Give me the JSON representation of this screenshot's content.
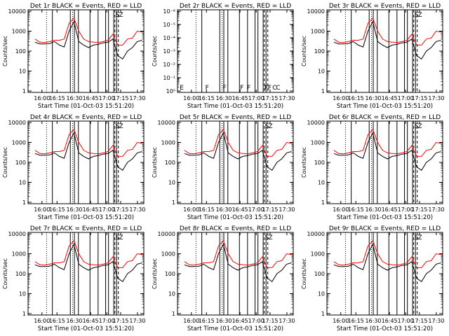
{
  "chart_data": [
    {
      "type": "line",
      "title": "Det 1r BLACK = Events, RED = LLD",
      "xlabel": "Start Time (01-Oct-03 15:51:20)",
      "ylabel": "Counts/sec",
      "x_ticks": [
        "16:00",
        "16:15",
        "16:30",
        "16:45",
        "17:00",
        "17:15",
        "17:30"
      ],
      "y_ticks": [
        "1",
        "10",
        "100",
        "1000",
        "10000"
      ],
      "yscale": "log",
      "ylim": [
        1,
        10000
      ],
      "series": [
        {
          "color": "#000000",
          "values": [
            280,
            230,
            230,
            240,
            300,
            200,
            160,
            1000,
            3000,
            300,
            200,
            150,
            200,
            220,
            260,
            280,
            400,
            60,
            40,
            100,
            150,
            300,
            350
          ]
        },
        {
          "color": "#ff0000",
          "values": [
            400,
            280,
            270,
            300,
            350,
            350,
            400,
            2500,
            4500,
            1000,
            400,
            300,
            280,
            270,
            300,
            350,
            700,
            200,
            200,
            400,
            450,
            1000,
            900
          ]
        }
      ],
      "flag_letters": [
        "S",
        "Z"
      ]
    },
    {
      "type": "line",
      "title": "Det 2r BLACK = Events, RED = LLD",
      "xlabel": "Start Time (01-Oct-03 15:51:20)",
      "ylabel": "Counts/sec",
      "x_ticks": [
        "16:00",
        "16:15",
        "16:30",
        "16:45",
        "17:00",
        "17:15",
        "17:30"
      ],
      "y_ticks": [
        "10⁰",
        "10⁻¹",
        "10⁻²",
        "10⁻³",
        "10⁻⁴",
        "10⁻⁵",
        "10⁻⁶"
      ],
      "yscale": "log",
      "series": [],
      "flag_letters": [
        "E",
        "F",
        "F",
        "F",
        "F",
        "F",
        "F",
        "C",
        "C"
      ]
    },
    {
      "type": "line",
      "title": "Det 3r BLACK = Events, RED = LLD",
      "xlabel": "Start Time (01-Oct-03 15:51:20)",
      "ylabel": "Counts/sec",
      "x_ticks": [
        "16:00",
        "16:15",
        "16:30",
        "16:45",
        "17:00",
        "17:15",
        "17:30"
      ],
      "y_ticks": [
        "1",
        "10",
        "100",
        "1000",
        "10000"
      ],
      "yscale": "log",
      "ylim": [
        1,
        10000
      ],
      "series": [
        {
          "color": "#000000",
          "values": [
            280,
            230,
            230,
            240,
            300,
            200,
            160,
            1000,
            3000,
            300,
            200,
            150,
            200,
            220,
            260,
            280,
            400,
            60,
            40,
            100,
            150,
            300,
            350
          ]
        },
        {
          "color": "#ff0000",
          "values": [
            400,
            280,
            270,
            300,
            350,
            350,
            400,
            2500,
            4500,
            1000,
            400,
            300,
            280,
            270,
            300,
            350,
            700,
            200,
            200,
            400,
            450,
            1000,
            900
          ]
        }
      ],
      "flag_letters": [
        "S",
        "Z"
      ]
    },
    {
      "type": "line",
      "title": "Det 4r BLACK = Events, RED = LLD",
      "xlabel": "Start Time (01-Oct-03 15:51:20)",
      "ylabel": "Counts/sec",
      "x_ticks": [
        "16:00",
        "16:15",
        "16:30",
        "16:45",
        "17:00",
        "17:15",
        "17:30"
      ],
      "y_ticks": [
        "1",
        "10",
        "100",
        "1000",
        "10000"
      ],
      "yscale": "log",
      "ylim": [
        1,
        10000
      ],
      "series": [
        {
          "color": "#000000",
          "values": [
            280,
            230,
            230,
            240,
            300,
            200,
            160,
            1000,
            3000,
            300,
            200,
            150,
            200,
            220,
            260,
            280,
            400,
            60,
            40,
            100,
            150,
            300,
            350
          ]
        },
        {
          "color": "#ff0000",
          "values": [
            400,
            280,
            270,
            300,
            350,
            350,
            400,
            2500,
            4500,
            1000,
            400,
            300,
            280,
            270,
            300,
            350,
            700,
            200,
            200,
            400,
            450,
            1000,
            900
          ]
        }
      ],
      "flag_letters": [
        "S",
        "Z"
      ]
    },
    {
      "type": "line",
      "title": "Det 5r BLACK = Events, RED = LLD",
      "xlabel": "Start Time (01-Oct-03 15:51:20)",
      "ylabel": "Counts/sec",
      "x_ticks": [
        "16:00",
        "16:15",
        "16:30",
        "16:45",
        "17:00",
        "17:15",
        "17:30"
      ],
      "y_ticks": [
        "1",
        "10",
        "100",
        "1000",
        "10000"
      ],
      "yscale": "log",
      "ylim": [
        1,
        10000
      ],
      "series": [
        {
          "color": "#000000",
          "values": [
            280,
            230,
            230,
            240,
            300,
            200,
            160,
            1000,
            3000,
            300,
            200,
            150,
            200,
            220,
            260,
            280,
            400,
            60,
            40,
            100,
            150,
            300,
            350
          ]
        },
        {
          "color": "#ff0000",
          "values": [
            400,
            280,
            270,
            300,
            350,
            350,
            400,
            2500,
            4500,
            1000,
            400,
            300,
            280,
            270,
            300,
            350,
            700,
            200,
            200,
            400,
            450,
            1000,
            900
          ]
        }
      ],
      "flag_letters": [
        "S",
        "Z"
      ]
    },
    {
      "type": "line",
      "title": "Det 6r BLACK = Events, RED = LLD",
      "xlabel": "Start Time (01-Oct-03 15:51:20)",
      "ylabel": "Counts/sec",
      "x_ticks": [
        "16:00",
        "16:15",
        "16:30",
        "16:45",
        "17:00",
        "17:15",
        "17:30"
      ],
      "y_ticks": [
        "1",
        "10",
        "100",
        "1000",
        "10000"
      ],
      "yscale": "log",
      "ylim": [
        1,
        10000
      ],
      "series": [
        {
          "color": "#000000",
          "values": [
            280,
            230,
            230,
            240,
            300,
            200,
            160,
            1000,
            3000,
            300,
            200,
            150,
            200,
            220,
            260,
            280,
            400,
            60,
            40,
            100,
            150,
            300,
            350
          ]
        },
        {
          "color": "#ff0000",
          "values": [
            400,
            280,
            270,
            300,
            350,
            350,
            400,
            2500,
            4500,
            1000,
            400,
            300,
            280,
            270,
            300,
            350,
            700,
            200,
            200,
            400,
            450,
            1000,
            900
          ]
        }
      ],
      "flag_letters": [
        "S",
        "Z"
      ]
    },
    {
      "type": "line",
      "title": "Det 7r BLACK = Events, RED = LLD",
      "xlabel": "Start Time (01-Oct-03 15:51:20)",
      "ylabel": "Counts/sec",
      "x_ticks": [
        "16:00",
        "16:15",
        "16:30",
        "16:45",
        "17:00",
        "17:15",
        "17:30"
      ],
      "y_ticks": [
        "1",
        "10",
        "100",
        "1000",
        "10000"
      ],
      "yscale": "log",
      "ylim": [
        1,
        10000
      ],
      "series": [
        {
          "color": "#000000",
          "values": [
            280,
            230,
            230,
            240,
            300,
            200,
            160,
            1000,
            3000,
            300,
            200,
            150,
            200,
            220,
            260,
            280,
            400,
            60,
            40,
            100,
            150,
            300,
            350
          ]
        },
        {
          "color": "#ff0000",
          "values": [
            400,
            280,
            270,
            300,
            350,
            350,
            400,
            2500,
            4500,
            1000,
            400,
            300,
            280,
            270,
            300,
            350,
            700,
            200,
            200,
            400,
            450,
            1000,
            900
          ]
        }
      ],
      "flag_letters": [
        "S",
        "Z"
      ]
    },
    {
      "type": "line",
      "title": "Det 8r BLACK = Events, RED = LLD",
      "xlabel": "Start Time (01-Oct-03 15:51:20)",
      "ylabel": "Counts/sec",
      "x_ticks": [
        "16:00",
        "16:15",
        "16:30",
        "16:45",
        "17:00",
        "17:15",
        "17:30"
      ],
      "y_ticks": [
        "1",
        "10",
        "100",
        "1000",
        "10000"
      ],
      "yscale": "log",
      "ylim": [
        1,
        10000
      ],
      "series": [
        {
          "color": "#000000",
          "values": [
            280,
            230,
            230,
            240,
            300,
            200,
            160,
            1000,
            3000,
            300,
            200,
            150,
            200,
            220,
            260,
            280,
            400,
            60,
            40,
            100,
            150,
            300,
            350
          ]
        },
        {
          "color": "#ff0000",
          "values": [
            400,
            280,
            270,
            300,
            350,
            350,
            400,
            2500,
            4500,
            1000,
            400,
            300,
            280,
            270,
            300,
            350,
            700,
            200,
            200,
            400,
            450,
            1000,
            900
          ]
        }
      ],
      "flag_letters": [
        "S",
        "Z"
      ]
    },
    {
      "type": "line",
      "title": "Det 9r BLACK = Events, RED = LLD",
      "xlabel": "Start Time (01-Oct-03 15:51:20)",
      "ylabel": "Counts/sec",
      "x_ticks": [
        "16:00",
        "16:15",
        "16:30",
        "16:45",
        "17:00",
        "17:15",
        "17:30"
      ],
      "y_ticks": [
        "1",
        "10",
        "100",
        "1000",
        "10000"
      ],
      "yscale": "log",
      "ylim": [
        1,
        10000
      ],
      "series": [
        {
          "color": "#000000",
          "values": [
            280,
            230,
            230,
            240,
            300,
            200,
            160,
            1000,
            3000,
            300,
            200,
            150,
            200,
            220,
            260,
            280,
            400,
            60,
            40,
            100,
            150,
            300,
            350
          ]
        },
        {
          "color": "#ff0000",
          "values": [
            400,
            280,
            270,
            300,
            350,
            350,
            400,
            2500,
            4500,
            1000,
            400,
            300,
            280,
            270,
            300,
            350,
            700,
            200,
            200,
            400,
            450,
            1000,
            900
          ]
        }
      ],
      "flag_letters": [
        "S",
        "Z"
      ]
    }
  ]
}
